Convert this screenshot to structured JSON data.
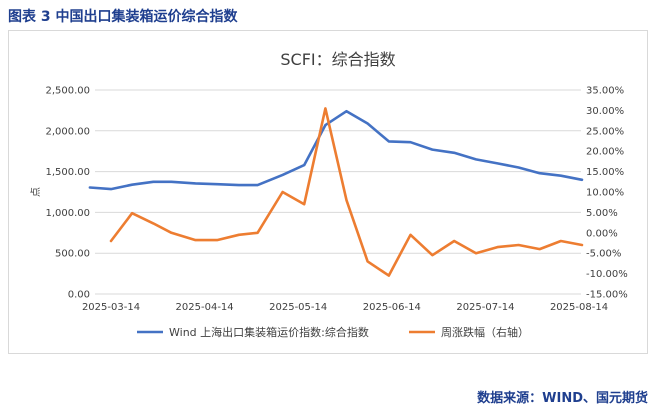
{
  "figure_title": "图表 3  中国出口集装箱运价综合指数",
  "source": "数据来源：WIND、国元期货",
  "chart_data": {
    "type": "line",
    "title": "SCFI：综合指数",
    "ylabel": "点",
    "ylim": [
      0,
      2500
    ],
    "y2lim": [
      -15,
      35
    ],
    "yticks": [
      "0.00",
      "500.00",
      "1,000.00",
      "1,500.00",
      "2,000.00",
      "2,500.00"
    ],
    "y2ticks": [
      "-15.00%",
      "-10.00%",
      "-5.00%",
      "0.00%",
      "5.00%",
      "10.00%",
      "15.00%",
      "20.00%",
      "25.00%",
      "30.00%",
      "35.00%"
    ],
    "xticks": [
      "2025-03-14",
      "2025-04-14",
      "2025-05-14",
      "2025-06-14",
      "2025-07-14",
      "2025-08-14"
    ],
    "x": [
      "2025-03-07",
      "2025-03-14",
      "2025-03-21",
      "2025-03-28",
      "2025-04-03",
      "2025-04-11",
      "2025-04-18",
      "2025-04-25",
      "2025-05-01",
      "2025-05-09",
      "2025-05-16",
      "2025-05-23",
      "2025-05-30",
      "2025-06-06",
      "2025-06-13",
      "2025-06-20",
      "2025-06-27",
      "2025-07-04",
      "2025-07-11",
      "2025-07-18",
      "2025-07-25",
      "2025-08-01",
      "2025-08-08",
      "2025-08-15",
      "2025-08-22"
    ],
    "series": [
      {
        "name": "Wind 上海出口集装箱运价指数:综合指数",
        "axis": "left",
        "color": "#4472c4",
        "values": [
          1305,
          1285,
          1340,
          1375,
          1375,
          1355,
          1345,
          1335,
          1335,
          1460,
          1580,
          2070,
          2240,
          2090,
          1870,
          1860,
          1770,
          1730,
          1650,
          1600,
          1550,
          1480,
          1450,
          1400,
          null
        ]
      },
      {
        "name": "周涨跌幅（右轴）",
        "axis": "right",
        "color": "#ed7d31",
        "values": [
          null,
          -2,
          4.8,
          2.3,
          0,
          -1.8,
          -1.8,
          -0.5,
          0,
          10,
          7,
          30.5,
          8,
          -7,
          -10.5,
          -0.5,
          -5.5,
          -2,
          -5,
          -3.5,
          -3,
          -4,
          -2,
          -3,
          null
        ]
      }
    ],
    "legend_position": "bottom"
  }
}
